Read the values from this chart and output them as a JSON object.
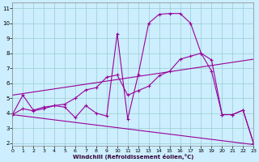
{
  "xlabel": "Windchill (Refroidissement éolien,°C)",
  "bg_color": "#cceeff",
  "line_color": "#990099",
  "grid_color": "#99cccc",
  "x_ticks": [
    0,
    1,
    2,
    3,
    4,
    5,
    6,
    7,
    8,
    9,
    10,
    11,
    12,
    13,
    14,
    15,
    16,
    17,
    18,
    19,
    20,
    21,
    22,
    23
  ],
  "y_ticks": [
    2,
    3,
    4,
    5,
    6,
    7,
    8,
    9,
    10,
    11
  ],
  "xlim": [
    0,
    23
  ],
  "ylim": [
    1.8,
    11.4
  ],
  "series1_x": [
    0,
    1,
    2,
    3,
    4,
    5,
    6,
    7,
    8,
    9,
    10,
    11,
    12,
    13,
    14,
    15,
    16,
    17,
    18,
    19,
    20,
    21,
    22,
    23
  ],
  "series1_y": [
    3.9,
    5.2,
    4.2,
    4.4,
    4.5,
    4.4,
    3.7,
    4.5,
    4.0,
    3.8,
    9.3,
    3.6,
    6.55,
    10.0,
    10.6,
    10.65,
    10.65,
    10.0,
    8.0,
    7.55,
    3.9,
    3.9,
    4.2,
    2.0
  ],
  "series2_x": [
    0,
    1,
    2,
    3,
    4,
    5,
    6,
    7,
    8,
    9,
    10,
    11,
    12,
    13,
    14,
    15,
    16,
    17,
    18,
    19,
    20,
    21,
    22,
    23
  ],
  "series2_y": [
    3.9,
    4.3,
    4.15,
    4.3,
    4.5,
    4.6,
    5.0,
    5.55,
    5.7,
    6.4,
    6.55,
    5.2,
    5.5,
    5.8,
    6.5,
    6.8,
    7.6,
    7.8,
    8.0,
    6.8,
    3.9,
    3.9,
    4.2,
    2.0
  ],
  "series3_x": [
    0,
    23
  ],
  "series3_y": [
    5.2,
    7.6
  ],
  "series4_x": [
    0,
    23
  ],
  "series4_y": [
    3.9,
    1.9
  ]
}
